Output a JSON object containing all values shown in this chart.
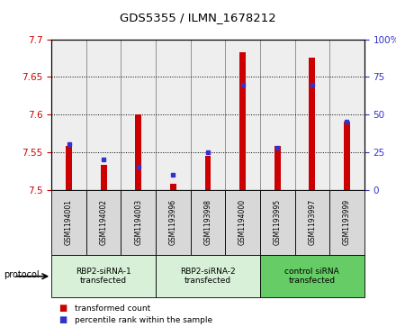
{
  "title": "GDS5355 / ILMN_1678212",
  "samples": [
    "GSM1194001",
    "GSM1194002",
    "GSM1194003",
    "GSM1193996",
    "GSM1193998",
    "GSM1194000",
    "GSM1193995",
    "GSM1193997",
    "GSM1193999"
  ],
  "transformed_counts": [
    7.558,
    7.533,
    7.6,
    7.508,
    7.545,
    7.683,
    7.558,
    7.675,
    7.59
  ],
  "percentile_ranks": [
    30,
    20,
    15,
    10,
    25,
    70,
    28,
    70,
    45
  ],
  "ylim_left": [
    7.5,
    7.7
  ],
  "ylim_right": [
    0,
    100
  ],
  "yticks_left": [
    7.5,
    7.55,
    7.6,
    7.65,
    7.7
  ],
  "yticks_right": [
    0,
    25,
    50,
    75,
    100
  ],
  "bar_color": "#cc0000",
  "dot_color": "#3333cc",
  "bar_bottom": 7.5,
  "groups": [
    {
      "label": "RBP2-siRNA-1\ntransfected",
      "start": 0,
      "end": 3,
      "color": "#d8f0d8"
    },
    {
      "label": "RBP2-siRNA-2\ntransfected",
      "start": 3,
      "end": 6,
      "color": "#d8f0d8"
    },
    {
      "label": "control siRNA\ntransfected",
      "start": 6,
      "end": 9,
      "color": "#66cc66"
    }
  ],
  "sample_cell_color": "#d8d8d8",
  "legend_items": [
    {
      "color": "#cc0000",
      "label": "transformed count"
    },
    {
      "color": "#3333cc",
      "label": "percentile rank within the sample"
    }
  ],
  "plot_bg_color": "#ffffff",
  "left_axis_color": "#cc0000",
  "right_axis_color": "#3333cc"
}
